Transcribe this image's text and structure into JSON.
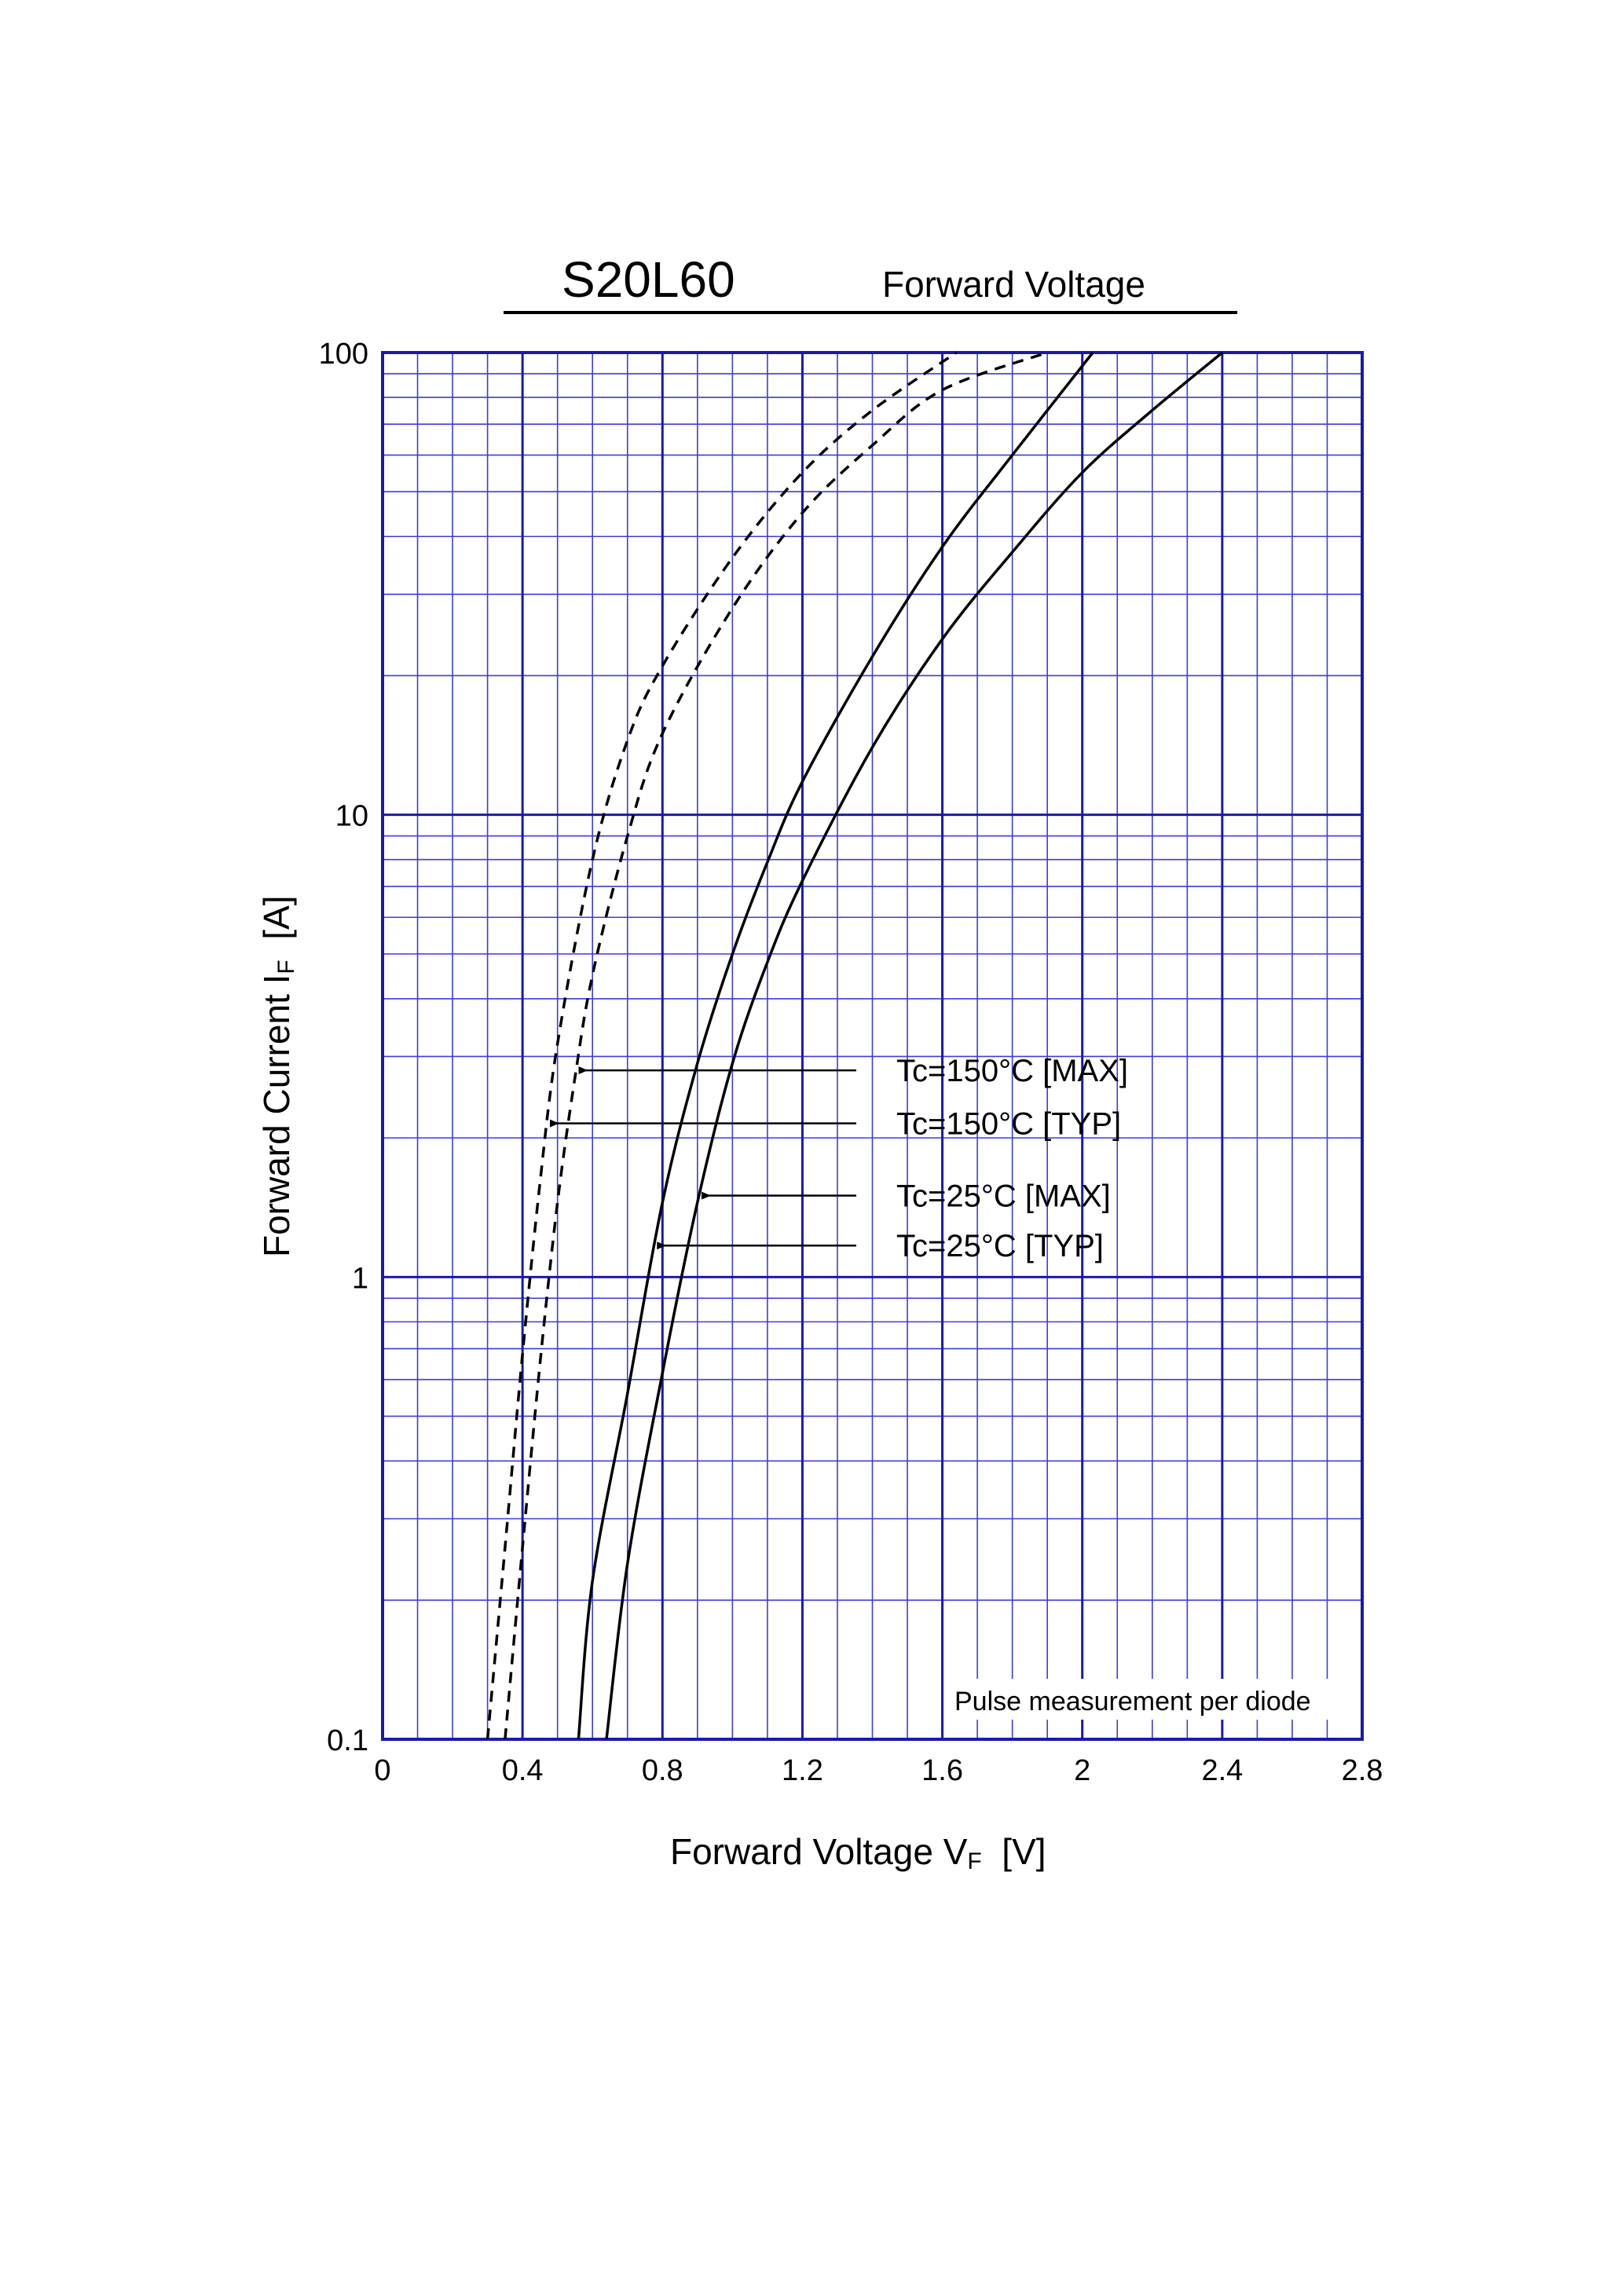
{
  "chart_data": {
    "type": "line",
    "title": "S20L60",
    "subtitle": "Forward Voltage",
    "xlabel": {
      "main": "Forward Voltage  V",
      "sub": "F",
      "unit": "  [V]"
    },
    "ylabel": {
      "main": "Forward Current  I",
      "sub": "F",
      "unit": "  [A]"
    },
    "xlim": [
      0,
      2.8
    ],
    "ylim": [
      0.1,
      100
    ],
    "yscale": "log",
    "grid": true,
    "x_ticks": [
      "0",
      "0.4",
      "0.8",
      "1.2",
      "1.6",
      "2",
      "2.4",
      "2.8"
    ],
    "y_ticks": [
      "0.1",
      "1",
      "10",
      "100"
    ],
    "note": "Pulse measurement per diode",
    "colors": {
      "grid": "#3c3cdc",
      "grid_major": "#1a1aa8",
      "curve": "#000000"
    },
    "series": [
      {
        "name": "Tc=150°C [MAX]",
        "style": "dashed",
        "points": [
          [
            0.35,
            0.1
          ],
          [
            0.4,
            0.26
          ],
          [
            0.45,
            0.65
          ],
          [
            0.5,
            1.45
          ],
          [
            0.55,
            2.7
          ],
          [
            0.6,
            4.5
          ],
          [
            0.7,
            9.0
          ],
          [
            0.8,
            15.0
          ],
          [
            1.0,
            28.0
          ],
          [
            1.2,
            45.0
          ],
          [
            1.4,
            63.0
          ],
          [
            1.6,
            83.0
          ],
          [
            1.9,
            100.0
          ]
        ]
      },
      {
        "name": "Tc=150°C [TYP]",
        "style": "dashed",
        "points": [
          [
            0.3,
            0.1
          ],
          [
            0.35,
            0.26
          ],
          [
            0.4,
            0.68
          ],
          [
            0.45,
            1.6
          ],
          [
            0.5,
            3.2
          ],
          [
            0.6,
            8.0
          ],
          [
            0.7,
            14.5
          ],
          [
            0.8,
            21.0
          ],
          [
            1.0,
            36.0
          ],
          [
            1.2,
            55.0
          ],
          [
            1.4,
            75.0
          ],
          [
            1.64,
            100.0
          ]
        ]
      },
      {
        "name": "Tc=25°C [MAX]",
        "style": "solid",
        "points": [
          [
            0.64,
            0.1
          ],
          [
            0.7,
            0.24
          ],
          [
            0.8,
            0.62
          ],
          [
            0.9,
            1.45
          ],
          [
            1.0,
            2.9
          ],
          [
            1.1,
            4.8
          ],
          [
            1.2,
            7.2
          ],
          [
            1.4,
            14.0
          ],
          [
            1.6,
            24.0
          ],
          [
            1.8,
            37.0
          ],
          [
            2.0,
            55.0
          ],
          [
            2.2,
            75.0
          ],
          [
            2.4,
            100.0
          ]
        ]
      },
      {
        "name": "Tc=25°C [TYP]",
        "style": "solid",
        "points": [
          [
            0.56,
            0.1
          ],
          [
            0.6,
            0.22
          ],
          [
            0.7,
            0.56
          ],
          [
            0.8,
            1.45
          ],
          [
            0.9,
            2.9
          ],
          [
            1.0,
            5.0
          ],
          [
            1.1,
            7.9
          ],
          [
            1.2,
            11.8
          ],
          [
            1.4,
            22.0
          ],
          [
            1.6,
            38.0
          ],
          [
            1.8,
            60.0
          ],
          [
            2.03,
            100.0
          ]
        ]
      }
    ],
    "annotations": [
      {
        "label": "Tc=150°C [MAX]",
        "series": 0,
        "arrow_y": 2.8
      },
      {
        "label": "Tc=150°C [TYP]",
        "series": 1,
        "arrow_y": 2.15
      },
      {
        "label": "Tc=25°C [MAX]",
        "series": 2,
        "arrow_y": 1.5
      },
      {
        "label": "Tc=25°C [TYP]",
        "series": 3,
        "arrow_y": 1.17
      }
    ]
  }
}
